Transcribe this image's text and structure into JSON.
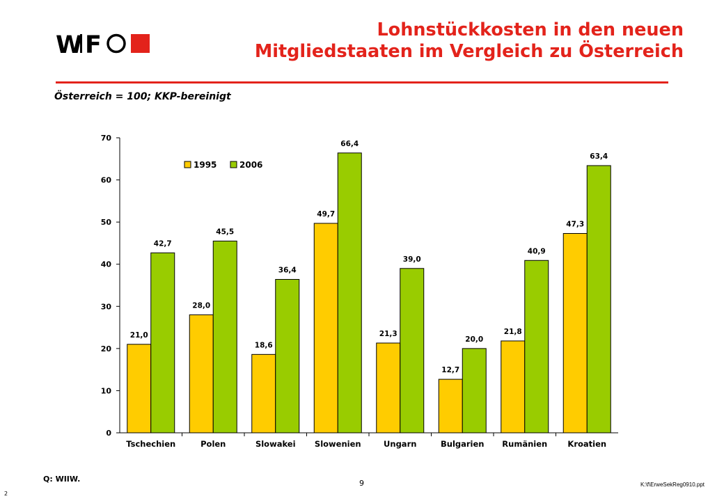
{
  "header": {
    "logo_text": "WIFO",
    "title_line1": "Lohnstückkosten in den neuen",
    "title_line2": "Mitgliedstaaten im Vergleich zu Österreich",
    "subtitle": "Österreich = 100; KKP-bereinigt"
  },
  "colors": {
    "accent": "#e3231b",
    "series_1995": "#ffcc00",
    "series_2006": "#99cc00"
  },
  "chart_data": {
    "type": "bar",
    "categories": [
      "Tschechien",
      "Polen",
      "Slowakei",
      "Slowenien",
      "Ungarn",
      "Bulgarien",
      "Rumänien",
      "Kroatien"
    ],
    "series": [
      {
        "name": "1995",
        "values": [
          21.0,
          28.0,
          18.6,
          49.7,
          21.3,
          12.7,
          21.8,
          47.3
        ],
        "labels": [
          "21,0",
          "28,0",
          "18,6",
          "49,7",
          "21,3",
          "12,7",
          "21,8",
          "47,3"
        ]
      },
      {
        "name": "2006",
        "values": [
          42.7,
          45.5,
          36.4,
          66.4,
          39.0,
          20.0,
          40.9,
          63.4
        ],
        "labels": [
          "42,7",
          "45,5",
          "36,4",
          "66,4",
          "39,0",
          "20,0",
          "40,9",
          "63,4"
        ]
      }
    ],
    "ylim": [
      0,
      70
    ],
    "yticks": [
      "0",
      "10",
      "20",
      "30",
      "40",
      "50",
      "60",
      "70"
    ],
    "legend_position": "top-left",
    "grid": false
  },
  "footer": {
    "source": "Q: WIIW.",
    "page_number": "9",
    "file": "K:\\f\\ErweSekReg0910.ppt",
    "slide_number": "2"
  }
}
